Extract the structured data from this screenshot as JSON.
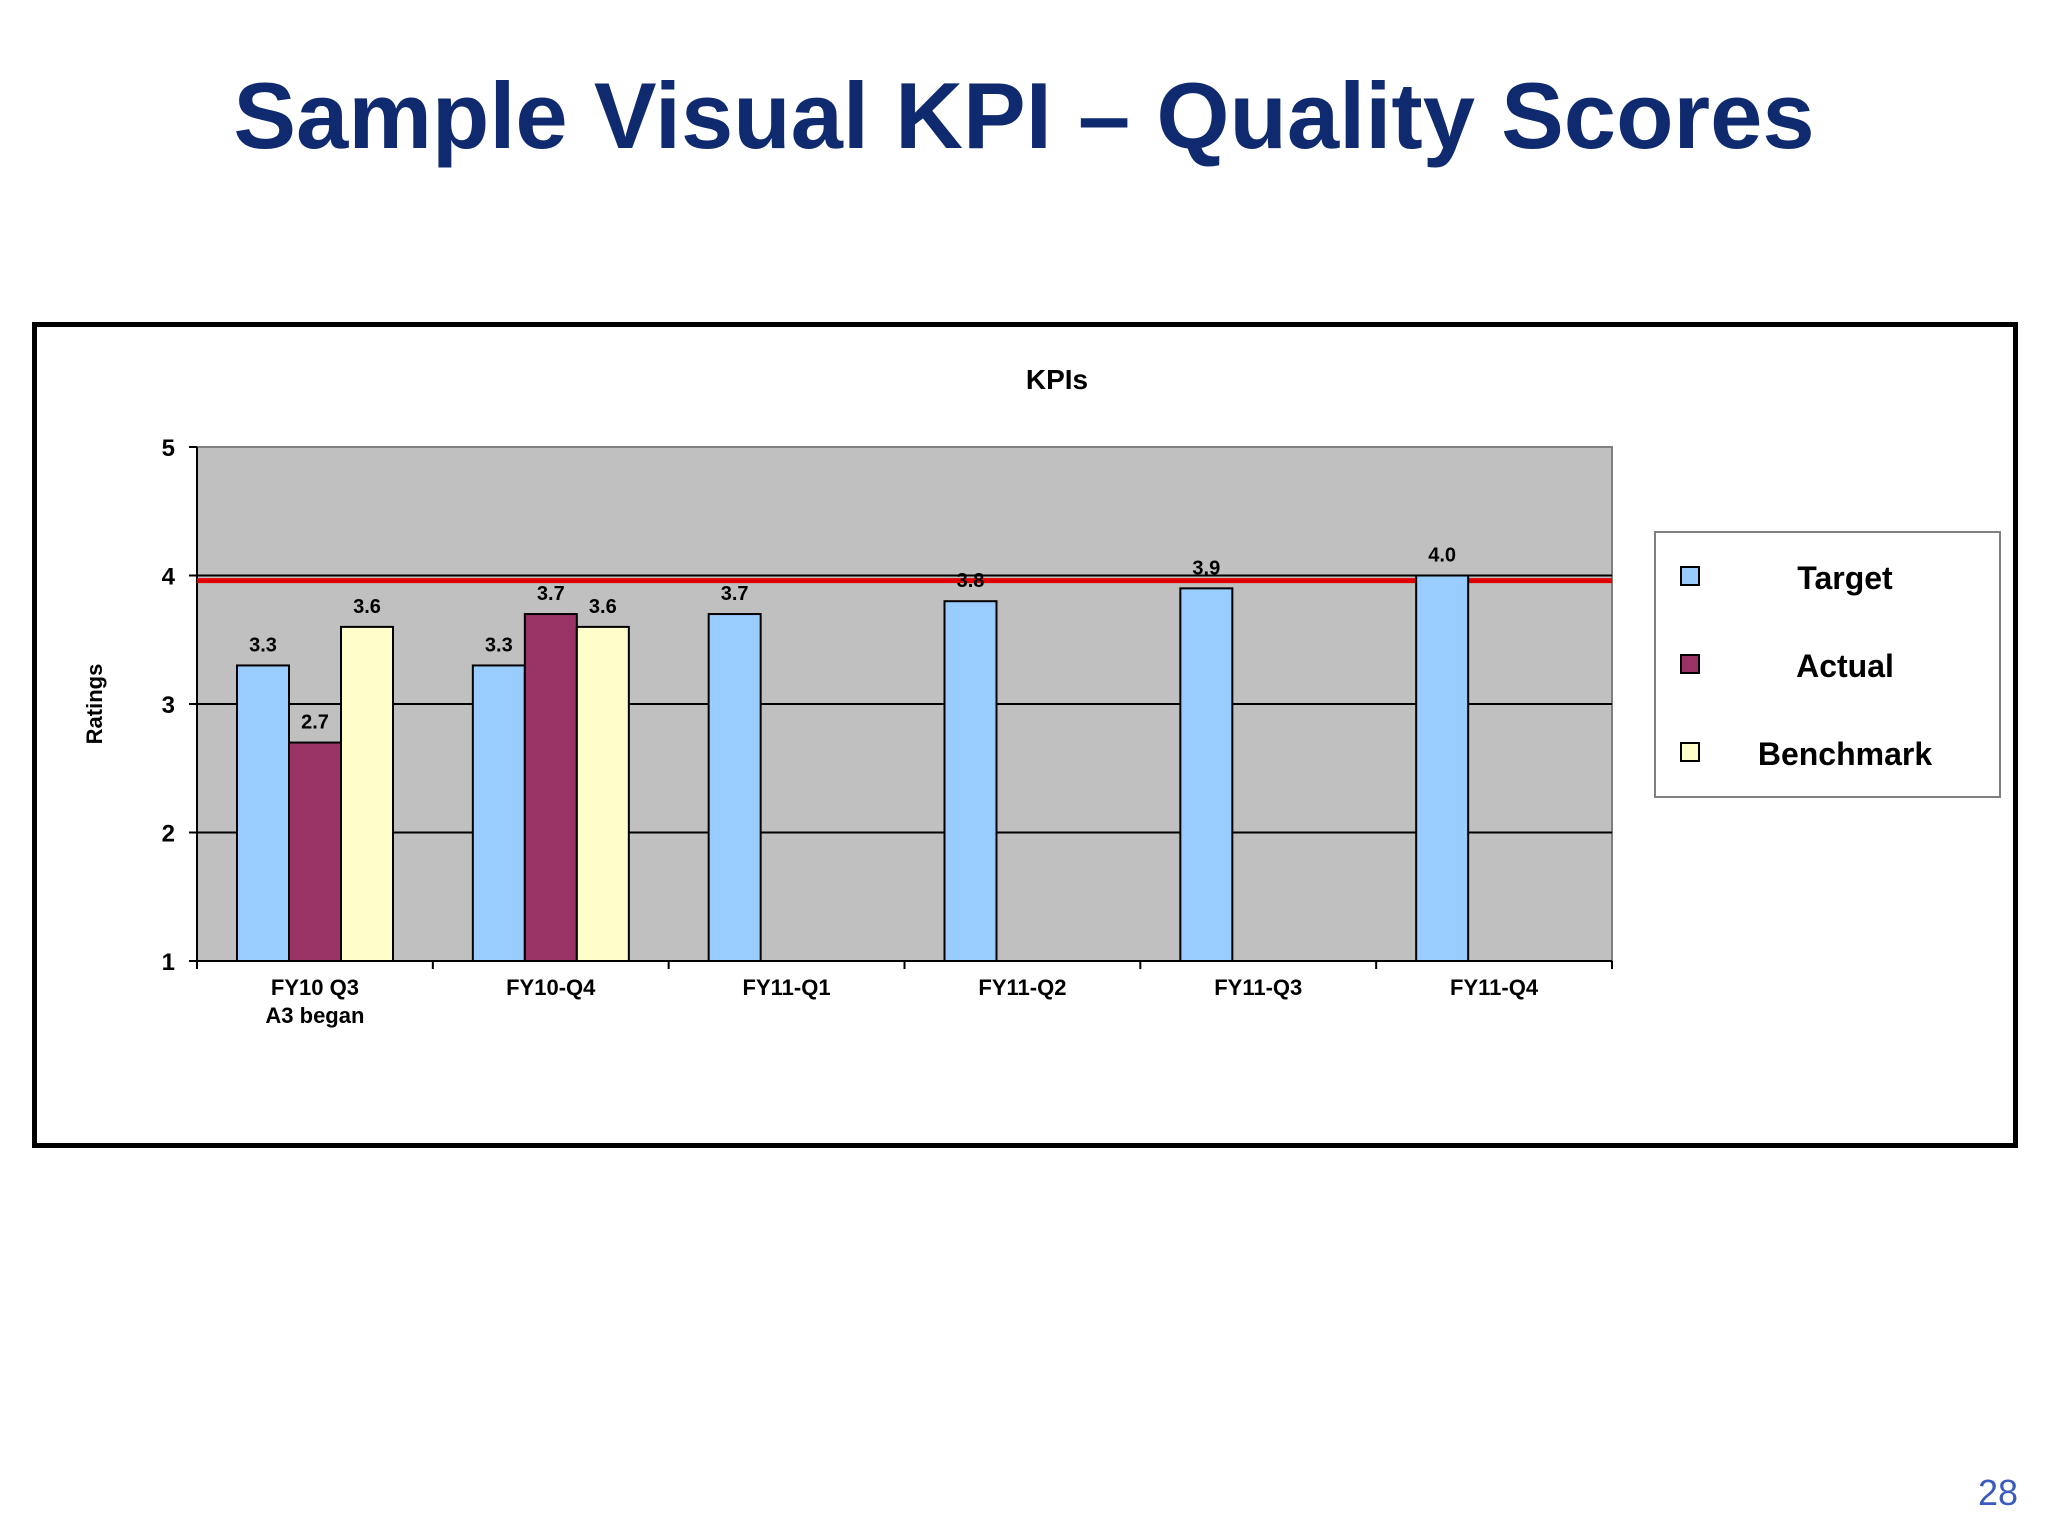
{
  "slide": {
    "title": "Sample Visual KPI – Quality Scores",
    "page_number": "28"
  },
  "chart_data": {
    "type": "bar",
    "title": "KPIs",
    "ylabel": "Ratings",
    "xlabel": "",
    "ylim": [
      1,
      5
    ],
    "yticks": [
      "1",
      "2",
      "3",
      "4",
      "5"
    ],
    "categories": [
      [
        "FY10 Q3",
        "A3 began"
      ],
      [
        "FY10-Q4"
      ],
      [
        "FY11-Q1"
      ],
      [
        "FY11-Q2"
      ],
      [
        "FY11-Q3"
      ],
      [
        "FY11-Q4"
      ]
    ],
    "series": [
      {
        "name": "Target",
        "color": "#99ccff",
        "values": [
          3.3,
          3.3,
          3.7,
          3.8,
          3.9,
          4.0
        ],
        "labels": [
          "3.3",
          "3.3",
          "3.7",
          "3.8",
          "3.9",
          "4.0"
        ]
      },
      {
        "name": "Actual",
        "color": "#993366",
        "values": [
          2.7,
          3.7,
          null,
          null,
          null,
          null
        ],
        "labels": [
          "2.7",
          "3.7",
          "",
          "",
          "",
          ""
        ]
      },
      {
        "name": "Benchmark",
        "color": "#ffffcc",
        "values": [
          3.6,
          3.6,
          null,
          null,
          null,
          null
        ],
        "labels": [
          "3.6",
          "3.6",
          "",
          "",
          "",
          ""
        ]
      }
    ],
    "reference_line": {
      "value": 3.96,
      "color": "#e00000"
    },
    "grid": true,
    "plot_background": "#c0c0c0",
    "legend_position": "right"
  }
}
